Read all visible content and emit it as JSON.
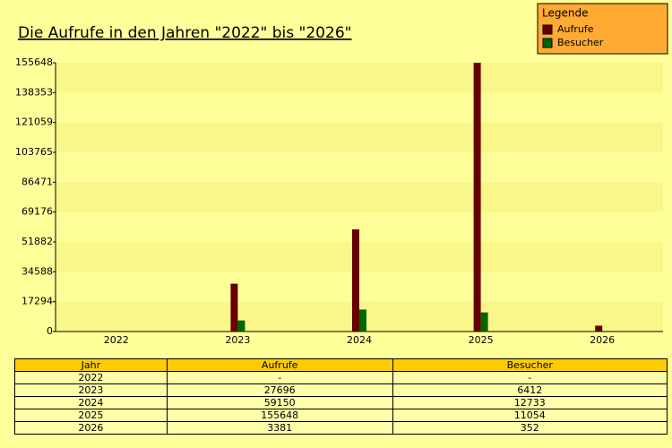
{
  "chart_data": {
    "type": "bar",
    "title": "Die Aufrufe in den Jahren \"2022\" bis \"2026\"",
    "categories": [
      "2022",
      "2023",
      "2024",
      "2025",
      "2026"
    ],
    "series": [
      {
        "name": "Aufrufe",
        "color": "#660000",
        "values": [
          null,
          27696,
          59150,
          155648,
          3381
        ]
      },
      {
        "name": "Besucher",
        "color": "#006600",
        "values": [
          null,
          6412,
          12733,
          11054,
          352
        ]
      }
    ],
    "ylim": [
      0,
      155648
    ],
    "yticks": [
      0,
      17294,
      34588,
      51882,
      69176,
      86471,
      103765,
      121059,
      138353,
      155648
    ],
    "legend_title": "Legende",
    "legend_position": "top-right"
  },
  "table": {
    "columns": [
      "Jahr",
      "Aufrufe",
      "Besucher"
    ],
    "rows": [
      [
        "2022",
        "-",
        "-"
      ],
      [
        "2023",
        "27696",
        "6412"
      ],
      [
        "2024",
        "59150",
        "12733"
      ],
      [
        "2025",
        "155648",
        "11054"
      ],
      [
        "2026",
        "3381",
        "352"
      ]
    ]
  }
}
